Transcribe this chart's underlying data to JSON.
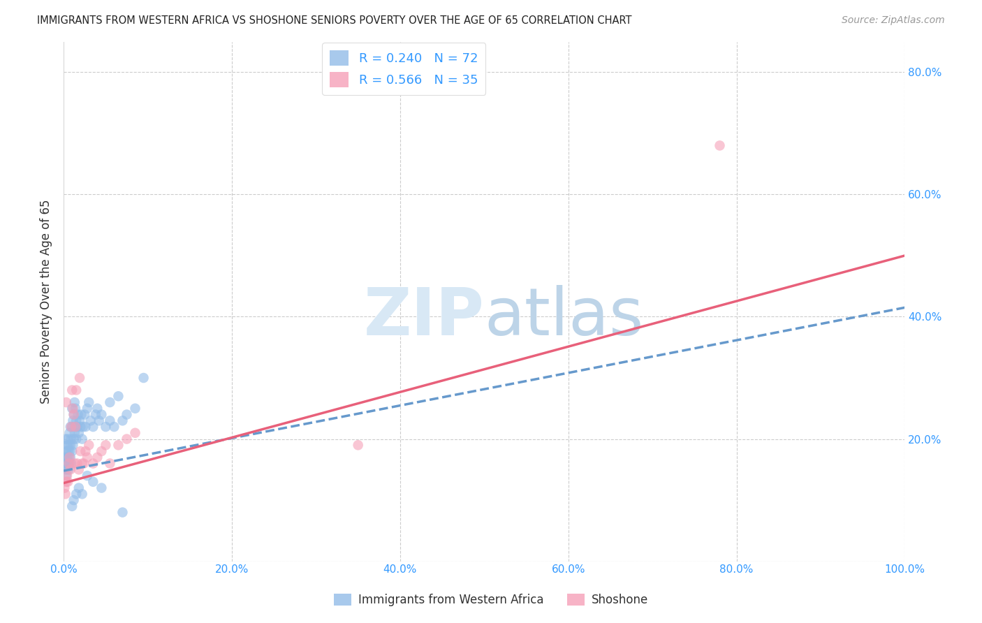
{
  "title": "IMMIGRANTS FROM WESTERN AFRICA VS SHOSHONE SENIORS POVERTY OVER THE AGE OF 65 CORRELATION CHART",
  "source": "Source: ZipAtlas.com",
  "ylabel": "Seniors Poverty Over the Age of 65",
  "blue_label": "Immigrants from Western Africa",
  "pink_label": "Shoshone",
  "blue_R": 0.24,
  "blue_N": 72,
  "pink_R": 0.566,
  "pink_N": 35,
  "blue_color": "#92bce8",
  "pink_color": "#f5a0b8",
  "blue_line_color": "#6699cc",
  "pink_line_color": "#e8607a",
  "xlim": [
    0.0,
    1.0
  ],
  "ylim": [
    0.0,
    0.85
  ],
  "xticks": [
    0.0,
    0.2,
    0.4,
    0.6,
    0.8,
    1.0
  ],
  "xtick_labels": [
    "0.0%",
    "20.0%",
    "40.0%",
    "60.0%",
    "80.0%",
    "100.0%"
  ],
  "yticks": [
    0.0,
    0.2,
    0.4,
    0.6,
    0.8
  ],
  "ytick_labels": [
    "",
    "20.0%",
    "40.0%",
    "60.0%",
    "80.0%"
  ],
  "blue_line_x0": 0.0,
  "blue_line_y0": 0.148,
  "blue_line_x1": 1.0,
  "blue_line_y1": 0.415,
  "pink_line_x0": 0.0,
  "pink_line_y0": 0.128,
  "pink_line_x1": 1.0,
  "pink_line_y1": 0.5,
  "blue_x": [
    0.001,
    0.002,
    0.002,
    0.003,
    0.003,
    0.003,
    0.004,
    0.004,
    0.004,
    0.005,
    0.005,
    0.005,
    0.006,
    0.006,
    0.006,
    0.007,
    0.007,
    0.007,
    0.008,
    0.008,
    0.008,
    0.009,
    0.009,
    0.01,
    0.01,
    0.01,
    0.011,
    0.011,
    0.012,
    0.012,
    0.013,
    0.013,
    0.014,
    0.014,
    0.015,
    0.015,
    0.016,
    0.017,
    0.018,
    0.019,
    0.02,
    0.021,
    0.022,
    0.023,
    0.025,
    0.026,
    0.028,
    0.03,
    0.032,
    0.035,
    0.038,
    0.04,
    0.042,
    0.045,
    0.05,
    0.055,
    0.06,
    0.065,
    0.07,
    0.075,
    0.085,
    0.095,
    0.01,
    0.012,
    0.015,
    0.018,
    0.022,
    0.028,
    0.035,
    0.045,
    0.055,
    0.07
  ],
  "blue_y": [
    0.17,
    0.15,
    0.2,
    0.14,
    0.16,
    0.18,
    0.17,
    0.15,
    0.19,
    0.16,
    0.18,
    0.2,
    0.15,
    0.17,
    0.19,
    0.16,
    0.18,
    0.21,
    0.17,
    0.19,
    0.22,
    0.16,
    0.2,
    0.18,
    0.22,
    0.25,
    0.19,
    0.23,
    0.2,
    0.24,
    0.21,
    0.26,
    0.22,
    0.25,
    0.2,
    0.23,
    0.22,
    0.24,
    0.21,
    0.23,
    0.22,
    0.24,
    0.2,
    0.22,
    0.24,
    0.22,
    0.25,
    0.26,
    0.23,
    0.22,
    0.24,
    0.25,
    0.23,
    0.24,
    0.22,
    0.26,
    0.22,
    0.27,
    0.23,
    0.24,
    0.25,
    0.3,
    0.09,
    0.1,
    0.11,
    0.12,
    0.11,
    0.14,
    0.13,
    0.12,
    0.23,
    0.08
  ],
  "pink_x": [
    0.001,
    0.002,
    0.003,
    0.003,
    0.004,
    0.005,
    0.006,
    0.007,
    0.008,
    0.009,
    0.01,
    0.011,
    0.012,
    0.013,
    0.014,
    0.015,
    0.016,
    0.018,
    0.019,
    0.02,
    0.022,
    0.024,
    0.026,
    0.028,
    0.03,
    0.035,
    0.04,
    0.045,
    0.05,
    0.055,
    0.065,
    0.075,
    0.085,
    0.78,
    0.35
  ],
  "pink_y": [
    0.12,
    0.11,
    0.13,
    0.26,
    0.14,
    0.13,
    0.16,
    0.17,
    0.15,
    0.22,
    0.28,
    0.25,
    0.24,
    0.16,
    0.22,
    0.28,
    0.16,
    0.15,
    0.3,
    0.18,
    0.16,
    0.16,
    0.18,
    0.17,
    0.19,
    0.16,
    0.17,
    0.18,
    0.19,
    0.16,
    0.19,
    0.2,
    0.21,
    0.68,
    0.19
  ]
}
